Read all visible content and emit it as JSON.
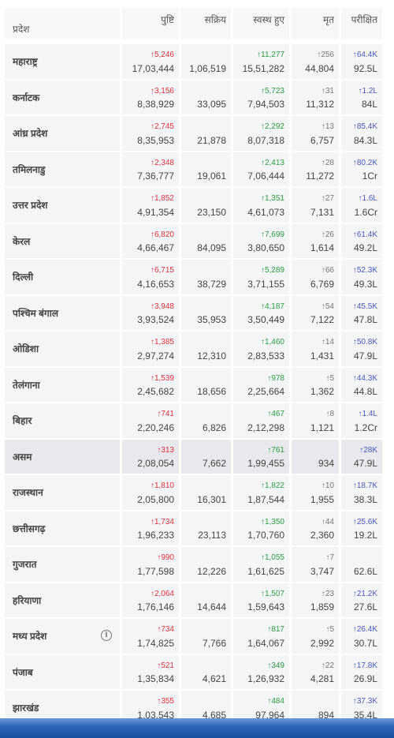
{
  "headers": {
    "state": "प्रदेश",
    "confirmed": "पुष्टि",
    "active": "सक्रिय",
    "recovered": "स्वस्थ हुए",
    "deceased": "मृत",
    "tested": "परीक्षित"
  },
  "rows": [
    {
      "state": "महाराष्ट्र",
      "confirmed_delta": "↑5,246",
      "confirmed": "17,03,444",
      "active": "1,06,519",
      "recovered_delta": "↑11,277",
      "recovered": "15,51,282",
      "deceased_delta": "↑256",
      "deceased": "44,804",
      "tested_delta": "↑64.4K",
      "tested": "92.5L"
    },
    {
      "state": "कर्नाटक",
      "confirmed_delta": "↑3,156",
      "confirmed": "8,38,929",
      "active": "33,095",
      "recovered_delta": "↑5,723",
      "recovered": "7,94,503",
      "deceased_delta": "↑31",
      "deceased": "11,312",
      "tested_delta": "↑1.2L",
      "tested": "84L"
    },
    {
      "state": "आंध्र प्रदेश",
      "confirmed_delta": "↑2,745",
      "confirmed": "8,35,953",
      "active": "21,878",
      "recovered_delta": "↑2,292",
      "recovered": "8,07,318",
      "deceased_delta": "↑13",
      "deceased": "6,757",
      "tested_delta": "↑85.4K",
      "tested": "84.3L"
    },
    {
      "state": "तमिलनाडु",
      "confirmed_delta": "↑2,348",
      "confirmed": "7,36,777",
      "active": "19,061",
      "recovered_delta": "↑2,413",
      "recovered": "7,06,444",
      "deceased_delta": "↑28",
      "deceased": "11,272",
      "tested_delta": "↑80.2K",
      "tested": "1Cr"
    },
    {
      "state": "उत्तर प्रदेश",
      "confirmed_delta": "↑1,852",
      "confirmed": "4,91,354",
      "active": "23,150",
      "recovered_delta": "↑1,351",
      "recovered": "4,61,073",
      "deceased_delta": "↑27",
      "deceased": "7,131",
      "tested_delta": "↑1.6L",
      "tested": "1.6Cr"
    },
    {
      "state": "केरल",
      "confirmed_delta": "↑6,820",
      "confirmed": "4,66,467",
      "active": "84,095",
      "recovered_delta": "↑7,699",
      "recovered": "3,80,650",
      "deceased_delta": "↑26",
      "deceased": "1,614",
      "tested_delta": "↑61.4K",
      "tested": "49.2L"
    },
    {
      "state": "दिल्ली",
      "confirmed_delta": "↑6,715",
      "confirmed": "4,16,653",
      "active": "38,729",
      "recovered_delta": "↑5,289",
      "recovered": "3,71,155",
      "deceased_delta": "↑66",
      "deceased": "6,769",
      "tested_delta": "↑52.3K",
      "tested": "49.3L"
    },
    {
      "state": "पश्चिम बंगाल",
      "confirmed_delta": "↑3,948",
      "confirmed": "3,93,524",
      "active": "35,953",
      "recovered_delta": "↑4,187",
      "recovered": "3,50,449",
      "deceased_delta": "↑54",
      "deceased": "7,122",
      "tested_delta": "↑45.5K",
      "tested": "47.8L"
    },
    {
      "state": "ओडिशा",
      "confirmed_delta": "↑1,385",
      "confirmed": "2,97,274",
      "active": "12,310",
      "recovered_delta": "↑1,460",
      "recovered": "2,83,533",
      "deceased_delta": "↑14",
      "deceased": "1,431",
      "tested_delta": "↑50.8K",
      "tested": "47.9L"
    },
    {
      "state": "तेलंगाना",
      "confirmed_delta": "↑1,539",
      "confirmed": "2,45,682",
      "active": "18,656",
      "recovered_delta": "↑978",
      "recovered": "2,25,664",
      "deceased_delta": "↑5",
      "deceased": "1,362",
      "tested_delta": "↑44.3K",
      "tested": "44.8L"
    },
    {
      "state": "बिहार",
      "confirmed_delta": "↑741",
      "confirmed": "2,20,246",
      "active": "6,826",
      "recovered_delta": "↑467",
      "recovered": "2,12,298",
      "deceased_delta": "↑8",
      "deceased": "1,121",
      "tested_delta": "↑1.4L",
      "tested": "1.2Cr"
    },
    {
      "state": "असम",
      "confirmed_delta": "↑313",
      "confirmed": "2,08,054",
      "active": "7,662",
      "recovered_delta": "↑761",
      "recovered": "1,99,455",
      "deceased_delta": "",
      "deceased": "934",
      "tested_delta": "↑28K",
      "tested": "47.9L",
      "highlight": true
    },
    {
      "state": "राजस्थान",
      "confirmed_delta": "↑1,810",
      "confirmed": "2,05,800",
      "active": "16,301",
      "recovered_delta": "↑1,822",
      "recovered": "1,87,544",
      "deceased_delta": "↑10",
      "deceased": "1,955",
      "tested_delta": "↑18.7K",
      "tested": "38.3L"
    },
    {
      "state": "छत्तीसगढ़",
      "confirmed_delta": "↑1,734",
      "confirmed": "1,96,233",
      "active": "23,113",
      "recovered_delta": "↑1,350",
      "recovered": "1,70,760",
      "deceased_delta": "↑44",
      "deceased": "2,360",
      "tested_delta": "↑25.6K",
      "tested": "19.2L"
    },
    {
      "state": "गुजरात",
      "confirmed_delta": "↑990",
      "confirmed": "1,77,598",
      "active": "12,226",
      "recovered_delta": "↑1,055",
      "recovered": "1,61,625",
      "deceased_delta": "↑7",
      "deceased": "3,747",
      "tested_delta": "",
      "tested": "62.6L"
    },
    {
      "state": "हरियाणा",
      "confirmed_delta": "↑2,064",
      "confirmed": "1,76,146",
      "active": "14,644",
      "recovered_delta": "↑1,507",
      "recovered": "1,59,643",
      "deceased_delta": "↑23",
      "deceased": "1,859",
      "tested_delta": "↑21.2K",
      "tested": "27.6L"
    },
    {
      "state": "मध्य प्रदेश",
      "confirmed_delta": "↑734",
      "confirmed": "1,74,825",
      "active": "7,766",
      "recovered_delta": "↑817",
      "recovered": "1,64,067",
      "deceased_delta": "↑5",
      "deceased": "2,992",
      "tested_delta": "↑26.4K",
      "tested": "30.7L",
      "info": true
    },
    {
      "state": "पंजाब",
      "confirmed_delta": "↑521",
      "confirmed": "1,35,834",
      "active": "4,621",
      "recovered_delta": "↑349",
      "recovered": "1,26,932",
      "deceased_delta": "↑22",
      "deceased": "4,281",
      "tested_delta": "↑17.8K",
      "tested": "26.9L"
    },
    {
      "state": "झारखंड",
      "confirmed_delta": "↑355",
      "confirmed": "1,03,543",
      "active": "4,685",
      "recovered_delta": "↑484",
      "recovered": "97,964",
      "deceased_delta": "",
      "deceased": "894",
      "tested_delta": "↑37.3K",
      "tested": "35.4L"
    }
  ],
  "colors": {
    "confirmed_delta": "#e0303c",
    "recovered_delta": "#2a9d3f",
    "deceased_delta": "#777777",
    "tested_delta": "#4a55c0",
    "cell_bg": "#f4f5f7",
    "highlight_bg": "#e8e9ec"
  },
  "icons": {
    "info": "info-icon",
    "info_glyph": "i"
  }
}
